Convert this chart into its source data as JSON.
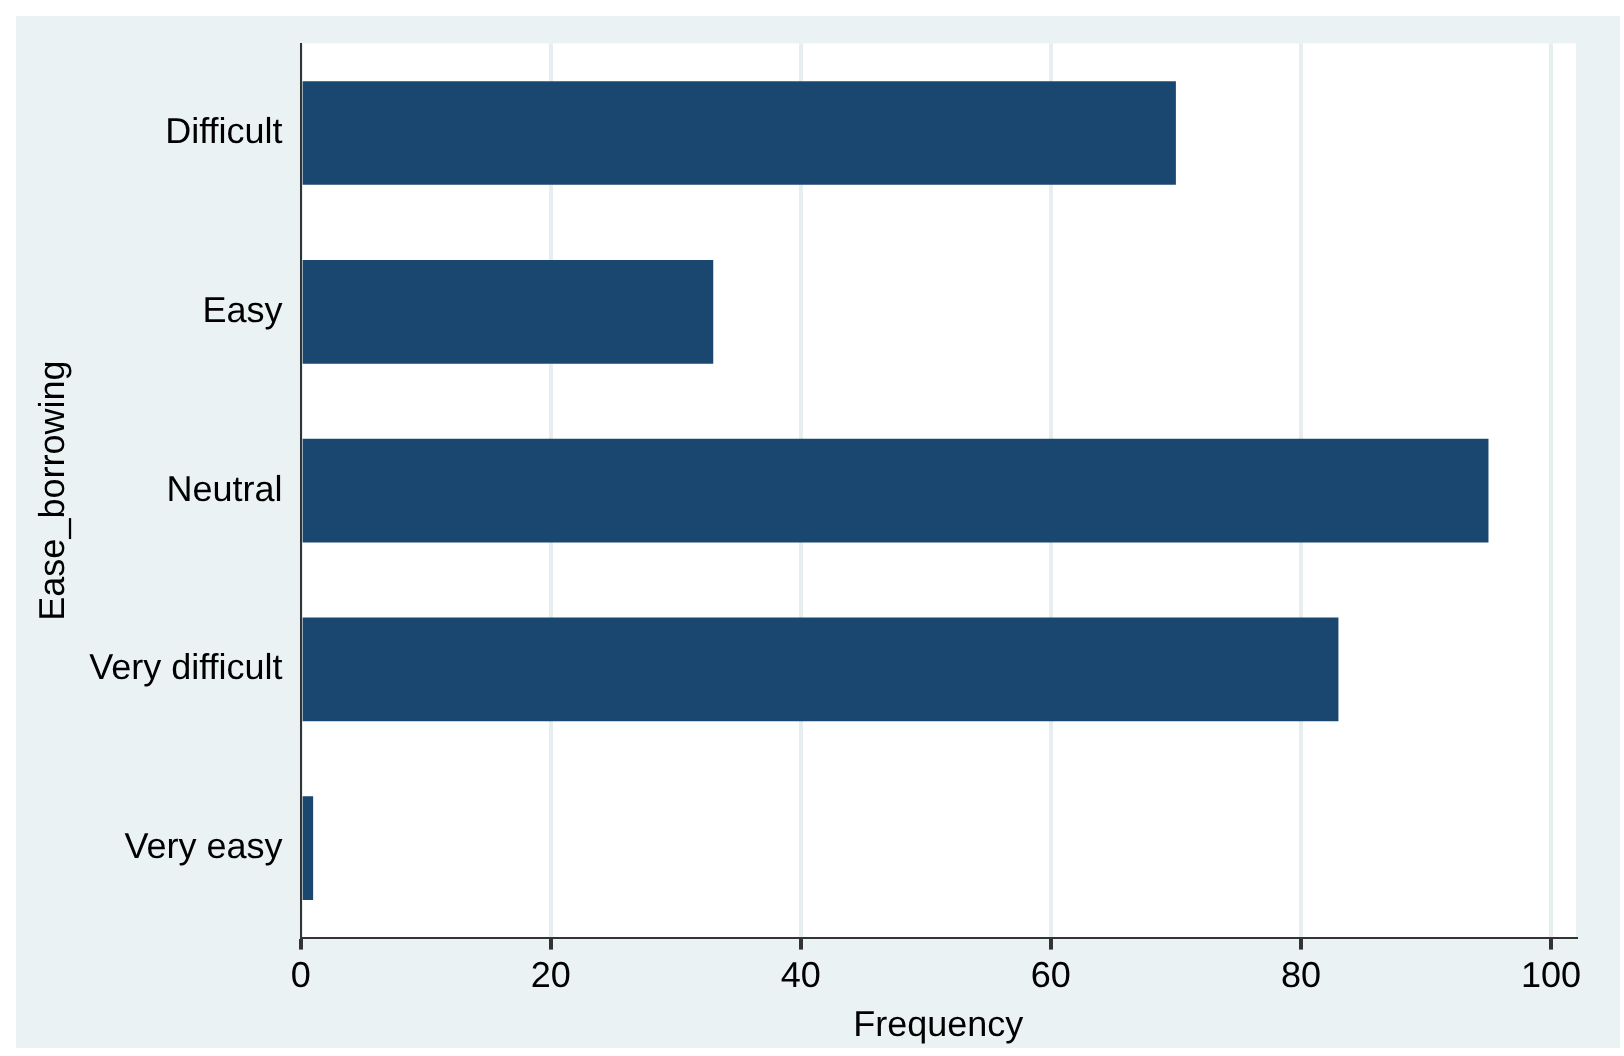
{
  "chart_data": {
    "type": "bar",
    "orientation": "horizontal",
    "xlabel": "Frequency",
    "ylabel": "Ease_borrowing",
    "categories": [
      "Difficult",
      "Easy",
      "Neutral",
      "Very difficult",
      "Very easy"
    ],
    "values": [
      70,
      33,
      95,
      83,
      1
    ],
    "color": "#1a476f",
    "xlim": [
      0,
      102
    ],
    "xticks": [
      0,
      20,
      40,
      60,
      80,
      100
    ],
    "grid": "x",
    "legend": false
  }
}
